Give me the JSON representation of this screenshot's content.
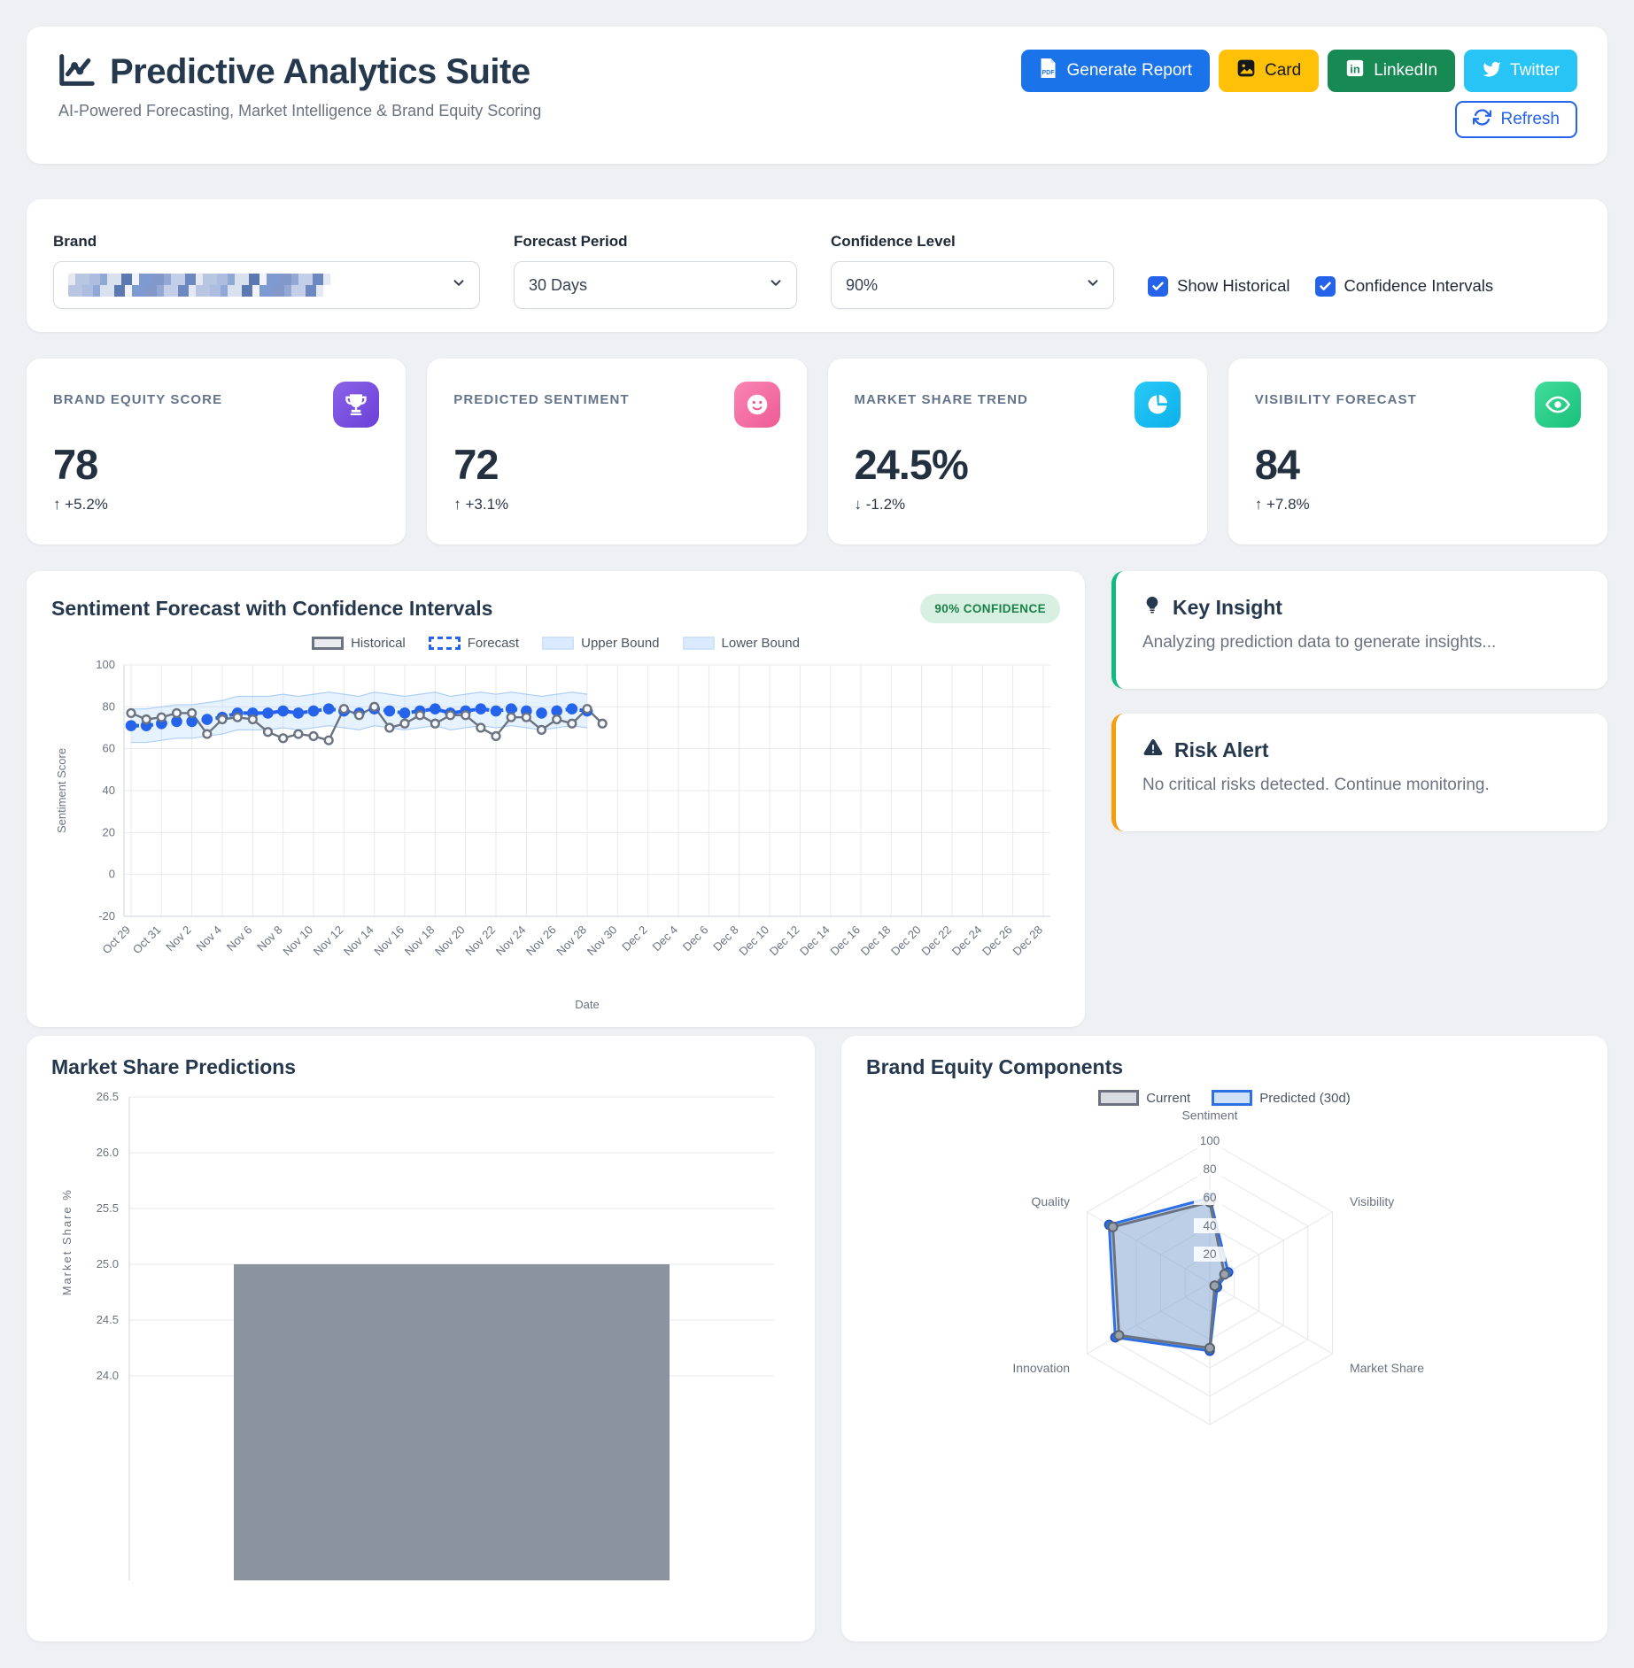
{
  "header": {
    "title": "Predictive Analytics Suite",
    "subtitle": "AI-Powered Forecasting, Market Intelligence & Brand Equity Scoring",
    "buttons": {
      "generate_report": "Generate Report",
      "card": "Card",
      "linkedin": "LinkedIn",
      "twitter": "Twitter",
      "refresh": "Refresh"
    }
  },
  "filters": {
    "brand": {
      "label": "Brand",
      "value_redacted": true
    },
    "forecast_period": {
      "label": "Forecast Period",
      "value": "30 Days"
    },
    "confidence_level": {
      "label": "Confidence Level",
      "value": "90%"
    },
    "checkboxes": [
      {
        "label": "Show Historical",
        "checked": true
      },
      {
        "label": "Confidence Intervals",
        "checked": true
      }
    ]
  },
  "kpis": [
    {
      "label": "BRAND EQUITY SCORE",
      "value": "78",
      "arrow": "↑",
      "delta": "+5.2%",
      "icon": "trophy",
      "icon_colors": [
        "#8a63e8",
        "#6a3fd8"
      ]
    },
    {
      "label": "PREDICTED SENTIMENT",
      "value": "72",
      "arrow": "↑",
      "delta": "+3.1%",
      "icon": "smiley",
      "icon_colors": [
        "#f986b4",
        "#ee5a95"
      ]
    },
    {
      "label": "MARKET SHARE TREND",
      "value": "24.5%",
      "arrow": "↓",
      "delta": "-1.2%",
      "icon": "pie-chart",
      "icon_colors": [
        "#29c8f7",
        "#0cb1ea"
      ]
    },
    {
      "label": "VISIBILITY FORECAST",
      "value": "84",
      "arrow": "↑",
      "delta": "+7.8%",
      "icon": "eye",
      "icon_colors": [
        "#43dd9c",
        "#17c07a"
      ]
    }
  ],
  "insight": {
    "title": "Key Insight",
    "text": "Analyzing prediction data to generate insights..."
  },
  "risk": {
    "title": "Risk Alert",
    "text": "No critical risks detected. Continue monitoring."
  },
  "colors": {
    "primary_blue": "#1a73e8",
    "amber": "#ffc107",
    "linkedin_green": "#178a53",
    "twitter_cyan": "#27c4f5",
    "badge_green_bg": "#d7f0e2",
    "badge_green_text": "#1a7f4b",
    "insight_accent": "#10b981",
    "risk_accent": "#f59e0b",
    "historical_gray": "#6b7280",
    "forecast_blue": "#2563eb",
    "band_blue": "#bfdbfe",
    "bar_gray": "#8b949e"
  },
  "chart_data": [
    {
      "id": "sentiment_forecast",
      "type": "line",
      "title": "Sentiment Forecast with Confidence Intervals",
      "badge": "90% CONFIDENCE",
      "xlabel": "Date",
      "ylabel": "Sentiment Score",
      "ylim": [
        -20,
        100
      ],
      "yticks": [
        100,
        80,
        60,
        40,
        20,
        0,
        -20
      ],
      "x_days_total": 61,
      "x_tick_labels": [
        "Oct 29",
        "Oct 31",
        "Nov 2",
        "Nov 4",
        "Nov 6",
        "Nov 8",
        "Nov 10",
        "Nov 12",
        "Nov 14",
        "Nov 16",
        "Nov 18",
        "Nov 20",
        "Nov 22",
        "Nov 24",
        "Nov 26",
        "Nov 28",
        "Nov 30",
        "Dec 2",
        "Dec 4",
        "Dec 6",
        "Dec 8",
        "Dec 10",
        "Dec 12",
        "Dec 14",
        "Dec 16",
        "Dec 18",
        "Dec 20",
        "Dec 22",
        "Dec 24",
        "Dec 26",
        "Dec 28"
      ],
      "legend": [
        "Historical",
        "Forecast",
        "Upper Bound",
        "Lower Bound"
      ],
      "series": [
        {
          "name": "Historical",
          "color": "#6b7280",
          "style": "solid",
          "values": [
            77,
            74,
            75,
            77,
            77,
            67,
            74,
            75,
            74,
            68,
            65,
            67,
            66,
            64,
            79,
            76,
            80,
            70,
            72,
            76,
            72,
            76,
            76,
            70,
            66,
            75,
            75,
            69,
            74,
            72,
            79,
            72
          ]
        },
        {
          "name": "Forecast",
          "color": "#2563eb",
          "style": "dashed",
          "values": [
            71,
            71,
            72,
            73,
            73,
            74,
            75,
            77,
            77,
            77,
            78,
            77,
            78,
            79,
            78,
            77,
            79,
            78,
            77,
            78,
            79,
            77,
            78,
            79,
            78,
            79,
            78,
            77,
            78,
            79,
            78
          ]
        },
        {
          "name": "Upper Bound",
          "color": "#bfdbfe",
          "values": [
            79,
            79,
            80,
            81,
            81,
            82,
            83,
            85,
            85,
            85,
            86,
            85,
            86,
            87,
            86,
            85,
            87,
            86,
            85,
            86,
            87,
            85,
            86,
            87,
            86,
            87,
            86,
            85,
            86,
            87,
            86
          ]
        },
        {
          "name": "Lower Bound",
          "color": "#bfdbfe",
          "values": [
            63,
            63,
            64,
            65,
            65,
            66,
            67,
            69,
            69,
            69,
            70,
            69,
            70,
            71,
            70,
            69,
            71,
            70,
            69,
            70,
            71,
            69,
            70,
            71,
            70,
            71,
            70,
            69,
            70,
            71,
            70
          ]
        }
      ]
    },
    {
      "id": "market_share",
      "type": "bar",
      "title": "Market Share Predictions",
      "ylabel": "Market Share %",
      "ylim": [
        24.0,
        26.5
      ],
      "yticks": [
        26.5,
        26.0,
        25.5,
        25.0,
        24.5,
        24.0
      ],
      "categories": [
        ""
      ],
      "values": [
        25.0
      ],
      "bar_color": "#8b949e"
    },
    {
      "id": "brand_equity",
      "type": "radar",
      "title": "Brand Equity Components",
      "axes": [
        "Sentiment",
        "Visibility",
        "Market Share",
        "",
        "Innovation",
        "Quality"
      ],
      "rticks": [
        20,
        40,
        60,
        80,
        100
      ],
      "rmax": 100,
      "legend": [
        "Current",
        "Predicted (30d)"
      ],
      "series": [
        {
          "name": "Current",
          "color": "#6b7280",
          "values": [
            57,
            12,
            4,
            46,
            74,
            79
          ]
        },
        {
          "name": "Predicted (30d)",
          "color": "#2f6fe4",
          "values": [
            60,
            15,
            6,
            48,
            77,
            82
          ]
        }
      ]
    }
  ]
}
